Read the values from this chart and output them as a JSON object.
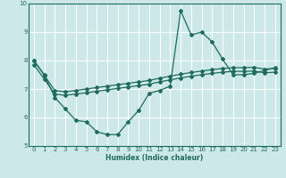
{
  "xlabel": "Humidex (Indice chaleur)",
  "background_color": "#cce8e8",
  "grid_color": "#ffffff",
  "line_color": "#1e6b5e",
  "xlim": [
    -0.5,
    23.5
  ],
  "ylim": [
    5,
    10
  ],
  "yticks": [
    5,
    6,
    7,
    8,
    9,
    10
  ],
  "xticks": [
    0,
    1,
    2,
    3,
    4,
    5,
    6,
    7,
    8,
    9,
    10,
    11,
    12,
    13,
    14,
    15,
    16,
    17,
    18,
    19,
    20,
    21,
    22,
    23
  ],
  "line1_x": [
    0,
    1,
    2,
    3,
    4,
    5,
    6,
    7,
    8,
    9,
    10,
    11,
    12,
    13,
    14,
    15,
    16,
    17,
    18,
    19,
    20,
    21,
    22,
    23
  ],
  "line1_y": [
    8.0,
    7.5,
    6.7,
    6.3,
    5.9,
    5.85,
    5.5,
    5.4,
    5.4,
    5.85,
    6.25,
    6.85,
    6.95,
    7.1,
    9.75,
    8.9,
    9.0,
    8.65,
    8.05,
    7.5,
    7.5,
    7.55,
    7.65,
    7.75
  ],
  "line2_x": [
    0,
    1,
    2,
    3,
    4,
    5,
    6,
    7,
    8,
    9,
    10,
    11,
    12,
    13,
    14,
    15,
    16,
    17,
    18,
    19,
    20,
    21,
    22,
    23
  ],
  "line2_y": [
    8.0,
    7.48,
    6.95,
    6.9,
    6.95,
    7.0,
    7.05,
    7.1,
    7.15,
    7.2,
    7.25,
    7.3,
    7.38,
    7.45,
    7.52,
    7.58,
    7.63,
    7.68,
    7.72,
    7.75,
    7.75,
    7.76,
    7.7,
    7.72
  ],
  "line3_x": [
    0,
    1,
    2,
    3,
    4,
    5,
    6,
    7,
    8,
    9,
    10,
    11,
    12,
    13,
    14,
    15,
    16,
    17,
    18,
    19,
    20,
    21,
    22,
    23
  ],
  "line3_y": [
    7.85,
    7.35,
    6.82,
    6.78,
    6.82,
    6.87,
    6.92,
    6.97,
    7.02,
    7.07,
    7.12,
    7.17,
    7.25,
    7.32,
    7.39,
    7.45,
    7.5,
    7.55,
    7.59,
    7.62,
    7.62,
    7.63,
    7.57,
    7.59
  ]
}
